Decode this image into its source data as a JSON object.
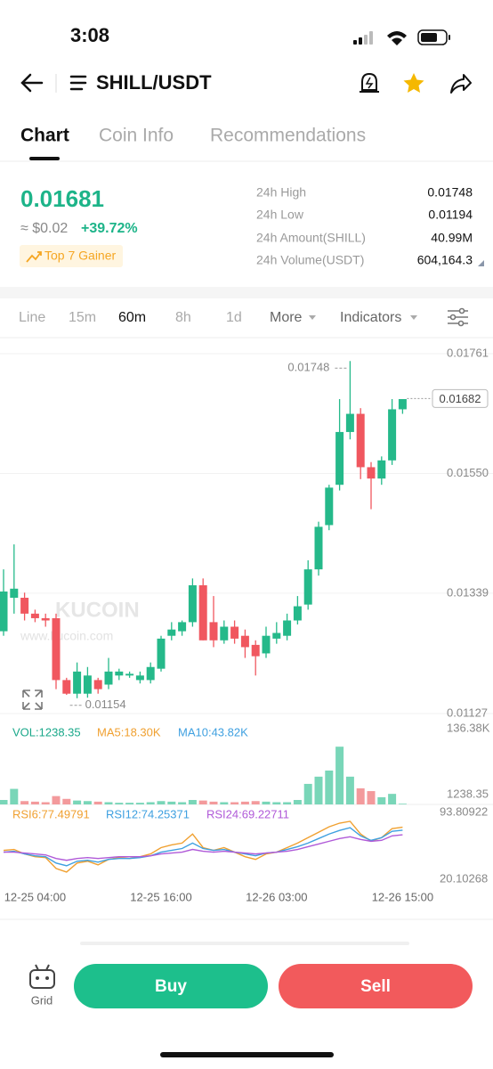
{
  "status_bar": {
    "time": "3:08"
  },
  "header": {
    "pair": "SHILL/USDT"
  },
  "tabs": [
    "Chart",
    "Coin Info",
    "Recommendations"
  ],
  "ticker": {
    "price": "0.01681",
    "fiat": "≈ $0.02",
    "change": "+39.72%",
    "badge": "Top 7 Gainer",
    "stats": [
      {
        "label": "24h High",
        "value": "0.01748"
      },
      {
        "label": "24h Low",
        "value": "0.01194"
      },
      {
        "label": "24h Amount(SHILL)",
        "value": "40.99M"
      },
      {
        "label": "24h Volume(USDT)",
        "value": "604,164.3"
      }
    ]
  },
  "toolbar": {
    "intervals": [
      "Line",
      "15m",
      "60m",
      "8h",
      "1d"
    ],
    "more": "More",
    "indicators": "Indicators"
  },
  "watermark": {
    "logo": "KUCOIN",
    "url": "www.kucoin.com"
  },
  "chart_data": [
    {
      "type": "candlestick",
      "categories": [
        null,
        null,
        null,
        "12-25 04:00",
        null,
        null,
        null,
        null,
        null,
        null,
        null,
        null,
        null,
        null,
        null,
        "12-25 16:00",
        null,
        null,
        null,
        null,
        null,
        null,
        null,
        null,
        null,
        null,
        "12-26 03:00",
        null,
        null,
        null,
        null,
        null,
        null,
        null,
        null,
        null,
        null,
        null,
        "12-26 15:00"
      ],
      "open": [
        0.01272,
        0.01331,
        0.01331,
        0.01303,
        0.01295,
        0.01295,
        0.01186,
        0.01162,
        0.01162,
        0.01186,
        0.01178,
        0.01194,
        0.01194,
        0.01186,
        0.01186,
        0.01206,
        0.01264,
        0.01272,
        0.01288,
        0.01353,
        0.01288,
        0.01256,
        0.0128,
        0.01264,
        0.01248,
        0.01233,
        0.01259,
        0.01264,
        0.01291,
        0.01319,
        0.01381,
        0.01459,
        0.0153,
        0.01623,
        0.01655,
        0.01561,
        0.01541,
        0.01573,
        0.01663
      ],
      "high": [
        0.01381,
        0.01425,
        0.0134,
        0.0131,
        0.01303,
        0.01303,
        0.0119,
        0.01217,
        0.01209,
        0.0119,
        0.01225,
        0.01206,
        0.01201,
        0.01201,
        0.01217,
        0.01264,
        0.01288,
        0.01291,
        0.01365,
        0.01365,
        0.01334,
        0.01291,
        0.01291,
        0.01275,
        0.01256,
        0.0128,
        0.01288,
        0.01303,
        0.01334,
        0.01397,
        0.01465,
        0.0153,
        0.01681,
        0.01748,
        0.01665,
        0.0157,
        0.0158,
        0.01681,
        0.01675
      ],
      "low": [
        0.01264,
        0.01303,
        0.01291,
        0.01288,
        0.0128,
        0.0117,
        0.0116,
        0.01154,
        0.01155,
        0.01162,
        0.0117,
        0.01186,
        0.0119,
        0.0118,
        0.0118,
        0.01201,
        0.01256,
        0.01264,
        0.0128,
        0.01256,
        0.01244,
        0.0125,
        0.0125,
        0.01225,
        0.01194,
        0.01225,
        0.0125,
        0.01256,
        0.01284,
        0.0131,
        0.0137,
        0.0145,
        0.0152,
        0.0161,
        0.0154,
        0.01487,
        0.0153,
        0.01565,
        0.01655
      ],
      "close": [
        0.01342,
        0.01347,
        0.01303,
        0.01295,
        0.01291,
        0.01186,
        0.01162,
        0.01201,
        0.01194,
        0.0117,
        0.01201,
        0.01201,
        0.01197,
        0.01194,
        0.01209,
        0.01259,
        0.01275,
        0.01288,
        0.01353,
        0.01256,
        0.01256,
        0.0128,
        0.01259,
        0.01244,
        0.01228,
        0.01264,
        0.01269,
        0.01291,
        0.01316,
        0.01381,
        0.01456,
        0.01525,
        0.01623,
        0.01655,
        0.01561,
        0.01541,
        0.01573,
        0.01663,
        0.01681
      ],
      "up_color": "#25b98a",
      "down_color": "#f0575f",
      "ylim": [
        0.01127,
        0.01761
      ],
      "yticks": [
        0.01761,
        {
          "value": 0.0155,
          "label": "0.01550"
        },
        0.01339,
        0.01127
      ],
      "max_label": 0.01748,
      "min_label": 0.01154,
      "last_price": 0.01682,
      "grid": true
    },
    {
      "type": "bar",
      "legend": [
        {
          "text": "VOL:1238.35",
          "color": "#1aa88a"
        },
        {
          "text": "MA5:18.30K",
          "color": "#f0a030"
        },
        {
          "text": "MA10:43.82K",
          "color": "#3fa0e0"
        }
      ],
      "values": [
        8,
        28,
        6,
        5,
        4,
        15,
        10,
        7,
        6,
        5,
        4,
        3,
        3,
        3,
        4,
        6,
        5,
        4,
        8,
        7,
        5,
        4,
        4,
        5,
        6,
        5,
        4,
        4,
        8,
        37,
        50,
        61,
        104,
        50,
        29,
        24,
        13,
        19,
        1.23835
      ],
      "up_color": "#79d6b8",
      "down_color": "#f39a9c",
      "ylim": [
        0,
        136.38
      ],
      "yticks": [
        {
          "value": 136.38,
          "label": "136.38K"
        },
        {
          "value": 1.23835,
          "label": "1238.35"
        }
      ]
    },
    {
      "type": "line",
      "series": [
        {
          "name": "RSI6:77.49791",
          "color": "#f0a030",
          "values": [
            52,
            53,
            48,
            45,
            44,
            32,
            28,
            38,
            40,
            36,
            42,
            44,
            43,
            45,
            48,
            55,
            58,
            60,
            70,
            55,
            52,
            55,
            50,
            45,
            42,
            48,
            50,
            55,
            60,
            66,
            72,
            78,
            82,
            84,
            70,
            62,
            66,
            76,
            77.49791
          ]
        },
        {
          "name": "RSI12:74.25371",
          "color": "#3fa0e0",
          "values": [
            50,
            51,
            48,
            46,
            45,
            38,
            35,
            40,
            41,
            39,
            42,
            43,
            43,
            44,
            46,
            50,
            52,
            54,
            60,
            54,
            52,
            53,
            50,
            48,
            46,
            49,
            50,
            53,
            56,
            60,
            65,
            70,
            74,
            77,
            68,
            63,
            66,
            73,
            74.25371
          ]
        },
        {
          "name": "RSI24:69.22711",
          "color": "#b05ad8",
          "values": [
            50,
            50,
            49,
            48,
            47,
            43,
            41,
            43,
            44,
            43,
            44,
            45,
            45,
            45,
            46,
            48,
            49,
            50,
            53,
            51,
            50,
            51,
            50,
            49,
            48,
            49,
            50,
            51,
            53,
            56,
            59,
            62,
            65,
            67,
            64,
            62,
            63,
            68,
            69.22711
          ]
        }
      ],
      "ylim": [
        20.10268,
        93.80922
      ],
      "yticks": [
        93.80922,
        20.10268
      ]
    }
  ],
  "bottom_bar": {
    "grid": "Grid",
    "buy": "Buy",
    "sell": "Sell"
  }
}
